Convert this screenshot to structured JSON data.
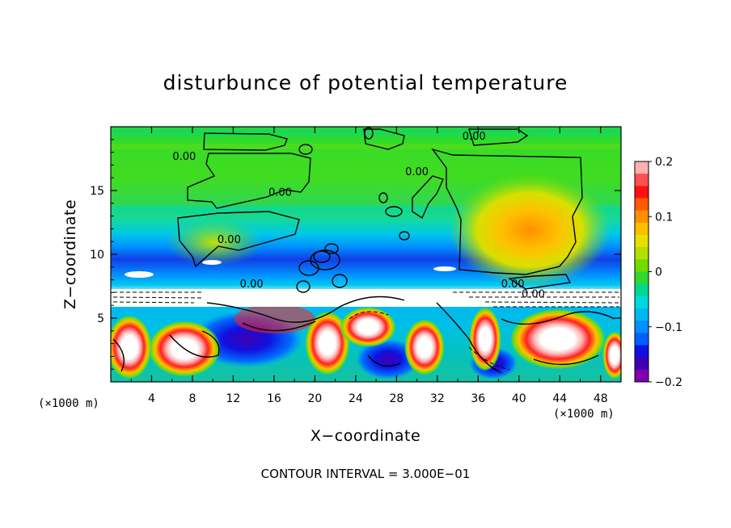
{
  "chart_data": {
    "type": "heatmap",
    "title": "disturbunce of potential temperature",
    "xlabel": "X−coordinate",
    "ylabel": "Z−coordinate",
    "x_unit_label": "(×1000 m)",
    "x_unit_label_right": "(×1000 m)",
    "footer": "CONTOUR INTERVAL = 3.000E−01",
    "xlim": [
      0,
      50
    ],
    "ylim": [
      0,
      20
    ],
    "x_ticks": [
      4,
      8,
      12,
      16,
      20,
      24,
      28,
      32,
      36,
      40,
      44,
      48
    ],
    "x_tick_labels": [
      "4",
      "8",
      "12",
      "16",
      "20",
      "24",
      "28",
      "32",
      "36",
      "40",
      "44",
      "48"
    ],
    "y_ticks": [
      5,
      10,
      15
    ],
    "y_tick_labels": [
      "5",
      "10",
      "15"
    ],
    "colorbar": {
      "range": [
        -0.2,
        0.2
      ],
      "ticks": [
        0.2,
        0.1,
        0,
        -0.1,
        -0.2
      ],
      "tick_labels": [
        "0.2",
        "0.1",
        "0",
        "−0.1",
        "−0.2"
      ],
      "colors": [
        "#ffb0b0",
        "#ff5050",
        "#ff1010",
        "#ff5a00",
        "#ff9000",
        "#ffbe00",
        "#e8e000",
        "#b4e000",
        "#70dc00",
        "#30d830",
        "#00d890",
        "#00d8e0",
        "#00b8f0",
        "#0090ff",
        "#0060ff",
        "#1010e0",
        "#4000b0",
        "#8000b0"
      ]
    },
    "contour_labels": [
      {
        "x": 7.2,
        "z": 17.4,
        "text": "0.00"
      },
      {
        "x": 16.6,
        "z": 14.6,
        "text": "0.00"
      },
      {
        "x": 11.6,
        "z": 10.9,
        "text": "0.00"
      },
      {
        "x": 30.0,
        "z": 16.2,
        "text": "0.00"
      },
      {
        "x": 35.6,
        "z": 19.0,
        "text": "0.00"
      },
      {
        "x": 39.4,
        "z": 7.4,
        "text": "0.00"
      },
      {
        "x": 41.4,
        "z": 6.6,
        "text": "0.00"
      },
      {
        "x": 13.8,
        "z": 7.4,
        "text": "0.00"
      }
    ]
  }
}
